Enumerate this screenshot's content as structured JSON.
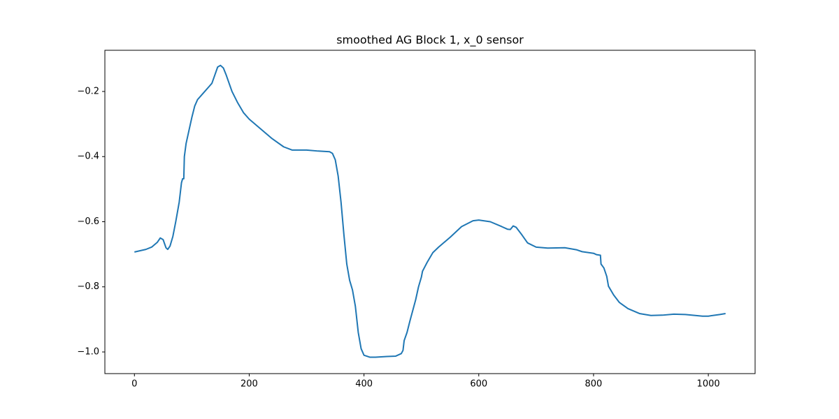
{
  "chart_data": {
    "type": "line",
    "title": "smoothed AG Block 1, x_0 sensor",
    "x": [
      0,
      20,
      30,
      40,
      45,
      50,
      55,
      58,
      62,
      67,
      72,
      78,
      82,
      84,
      86,
      87,
      90,
      95,
      100,
      105,
      110,
      120,
      130,
      135,
      140,
      145,
      150,
      155,
      160,
      170,
      180,
      190,
      200,
      220,
      240,
      260,
      275,
      300,
      320,
      340,
      345,
      350,
      355,
      360,
      365,
      370,
      375,
      380,
      385,
      390,
      395,
      400,
      410,
      420,
      440,
      455,
      465,
      468,
      470,
      475,
      480,
      490,
      495,
      500,
      502,
      510,
      520,
      530,
      550,
      570,
      590,
      600,
      620,
      640,
      650,
      655,
      660,
      665,
      675,
      685,
      700,
      720,
      750,
      770,
      780,
      800,
      805,
      812,
      813,
      818,
      823,
      826,
      835,
      845,
      860,
      880,
      900,
      920,
      940,
      960,
      990,
      1000,
      1020,
      1030
    ],
    "series": [
      {
        "color": "#1f77b4",
        "values": [
          -0.693,
          -0.685,
          -0.678,
          -0.663,
          -0.65,
          -0.655,
          -0.68,
          -0.685,
          -0.675,
          -0.645,
          -0.6,
          -0.54,
          -0.48,
          -0.468,
          -0.468,
          -0.4,
          -0.36,
          -0.32,
          -0.28,
          -0.245,
          -0.225,
          -0.205,
          -0.185,
          -0.175,
          -0.15,
          -0.125,
          -0.12,
          -0.128,
          -0.15,
          -0.2,
          -0.235,
          -0.265,
          -0.285,
          -0.315,
          -0.345,
          -0.37,
          -0.38,
          -0.38,
          -0.383,
          -0.385,
          -0.39,
          -0.41,
          -0.46,
          -0.54,
          -0.64,
          -0.73,
          -0.78,
          -0.81,
          -0.86,
          -0.94,
          -0.99,
          -1.01,
          -1.016,
          -1.016,
          -1.014,
          -1.013,
          -1.005,
          -0.995,
          -0.965,
          -0.94,
          -0.905,
          -0.84,
          -0.8,
          -0.77,
          -0.752,
          -0.725,
          -0.695,
          -0.678,
          -0.648,
          -0.615,
          -0.597,
          -0.595,
          -0.6,
          -0.615,
          -0.623,
          -0.624,
          -0.613,
          -0.617,
          -0.64,
          -0.665,
          -0.678,
          -0.681,
          -0.68,
          -0.686,
          -0.692,
          -0.697,
          -0.701,
          -0.703,
          -0.73,
          -0.742,
          -0.768,
          -0.798,
          -0.825,
          -0.848,
          -0.867,
          -0.882,
          -0.888,
          -0.887,
          -0.884,
          -0.885,
          -0.89,
          -0.89,
          -0.885,
          -0.882
        ]
      }
    ],
    "xlim": [
      -51.5,
      1081.5
    ],
    "ylim": [
      -1.0665,
      -0.0735
    ],
    "xticks": [
      0,
      200,
      400,
      600,
      800,
      1000
    ],
    "yticks": [
      {
        "value": -1.0,
        "label": "−1.0"
      },
      {
        "value": -0.8,
        "label": "−0.8"
      },
      {
        "value": -0.6,
        "label": "−0.6"
      },
      {
        "value": -0.4,
        "label": "−0.4"
      },
      {
        "value": -0.2,
        "label": "−0.2"
      }
    ]
  }
}
